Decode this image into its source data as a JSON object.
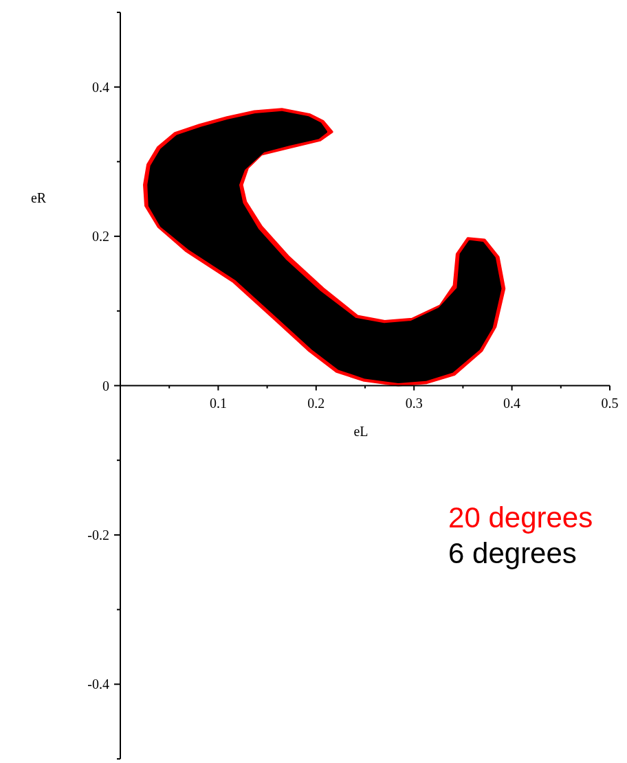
{
  "chart_data": {
    "type": "area",
    "xlabel": "eL",
    "ylabel": "eR",
    "xlim": [
      0,
      0.5
    ],
    "ylim": [
      -0.5,
      0.5
    ],
    "xticks": [
      {
        "value": 0.05,
        "label": null
      },
      0.1,
      {
        "value": 0.15,
        "label": null
      },
      0.2,
      {
        "value": 0.25,
        "label": null
      },
      0.3,
      {
        "value": 0.35,
        "label": null
      },
      0.4,
      {
        "value": 0.45,
        "label": null
      },
      0.5
    ],
    "yticks": [
      {
        "value": -0.5,
        "label": null
      },
      -0.4,
      {
        "value": -0.3,
        "label": null
      },
      -0.2,
      {
        "value": -0.1,
        "label": null
      },
      0,
      {
        "value": 0.1,
        "label": null
      },
      0.2,
      {
        "value": 0.3,
        "label": null
      },
      0.4,
      {
        "value": 0.5,
        "label": null
      }
    ],
    "legend": "bottom right",
    "series": [
      {
        "name": "20 degrees",
        "color": "#ff0000",
        "x": [
          0.0246,
          0.0281,
          0.0386,
          0.056,
          0.081,
          0.109,
          0.137,
          0.165,
          0.193,
          0.207,
          0.216,
          0.204,
          0.172,
          0.144,
          0.13,
          0.124,
          0.128,
          0.144,
          0.172,
          0.207,
          0.242,
          0.27,
          0.298,
          0.327,
          0.341,
          0.344,
          0.355,
          0.372,
          0.386,
          0.392,
          0.383,
          0.369,
          0.341,
          0.313,
          0.284,
          0.249,
          0.221,
          0.193,
          0.158,
          0.116,
          0.067,
          0.039,
          0.026
        ],
        "values": [
          0.269,
          0.296,
          0.319,
          0.338,
          0.349,
          0.359,
          0.367,
          0.37,
          0.363,
          0.354,
          0.34,
          0.329,
          0.319,
          0.31,
          0.292,
          0.269,
          0.246,
          0.213,
          0.172,
          0.13,
          0.093,
          0.086,
          0.089,
          0.107,
          0.134,
          0.176,
          0.197,
          0.195,
          0.172,
          0.13,
          0.079,
          0.047,
          0.015,
          0.004,
          0.001,
          0.007,
          0.019,
          0.047,
          0.089,
          0.139,
          0.181,
          0.213,
          0.241
        ]
      },
      {
        "name": "6 degrees",
        "color": "#000000",
        "x": [
          0.029,
          0.032,
          0.042,
          0.058,
          0.083,
          0.11,
          0.138,
          0.165,
          0.192,
          0.204,
          0.21,
          0.202,
          0.172,
          0.146,
          0.126,
          0.12,
          0.124,
          0.14,
          0.168,
          0.203,
          0.24,
          0.27,
          0.297,
          0.326,
          0.345,
          0.348,
          0.357,
          0.37,
          0.382,
          0.388,
          0.379,
          0.366,
          0.339,
          0.312,
          0.284,
          0.25,
          0.223,
          0.196,
          0.161,
          0.119,
          0.07,
          0.042,
          0.03
        ],
        "values": [
          0.269,
          0.294,
          0.316,
          0.334,
          0.345,
          0.355,
          0.363,
          0.366,
          0.359,
          0.351,
          0.34,
          0.332,
          0.323,
          0.314,
          0.29,
          0.269,
          0.244,
          0.209,
          0.168,
          0.126,
          0.089,
          0.082,
          0.085,
          0.103,
          0.13,
          0.176,
          0.193,
          0.191,
          0.171,
          0.13,
          0.078,
          0.049,
          0.019,
          0.008,
          0.005,
          0.011,
          0.023,
          0.05,
          0.092,
          0.142,
          0.184,
          0.214,
          0.241
        ]
      }
    ]
  }
}
